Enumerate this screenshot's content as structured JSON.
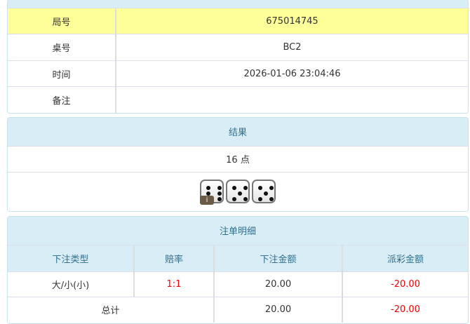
{
  "info": {
    "rows": [
      {
        "label": "局号",
        "value": "675014745"
      },
      {
        "label": "桌号",
        "value": "BC2"
      },
      {
        "label": "时间",
        "value": "2026-01-06 23:04:46"
      },
      {
        "label": "备注",
        "value": ""
      }
    ]
  },
  "result": {
    "title": "结果",
    "points": "16 点",
    "dice": [
      6,
      5,
      5
    ],
    "info_badge": "i"
  },
  "bets": {
    "title": "注单明细",
    "headers": [
      "下注类型",
      "赔率",
      "下注金额",
      "派彩金额"
    ],
    "rows": [
      {
        "type": "大/小(小)",
        "odds": "1:1",
        "amount": "20.00",
        "payout": "-20.00"
      }
    ],
    "total": {
      "label": "总计",
      "amount": "20.00",
      "payout": "-20.00"
    }
  },
  "colors": {
    "header_bg": "#d9edf7",
    "highlight": "#ffff99",
    "negative": "#ee0000"
  }
}
